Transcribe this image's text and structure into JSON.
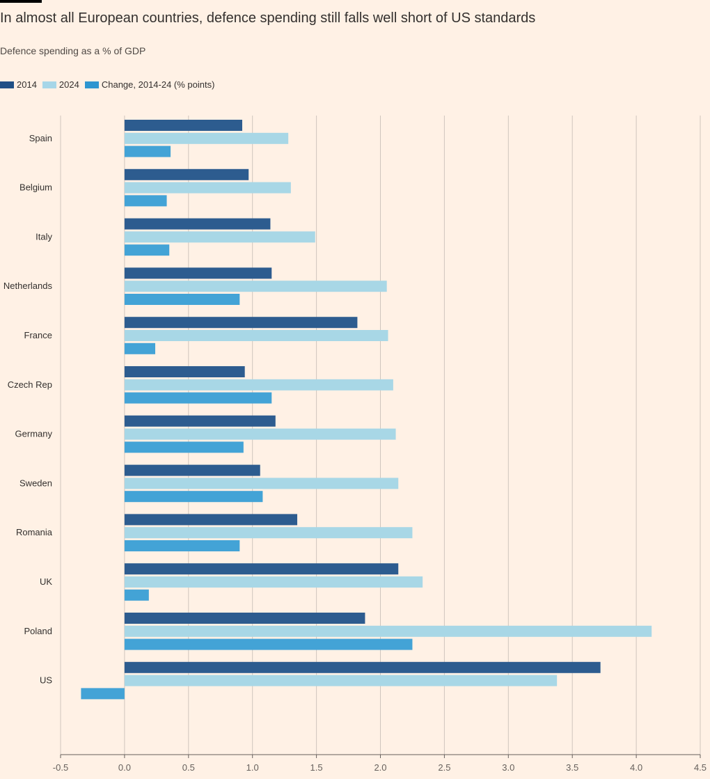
{
  "header": {
    "title": "In almost all European countries, defence spending still falls well short of US standards",
    "subtitle": "Defence spending as a % of GDP"
  },
  "legend": [
    {
      "label": "2014",
      "color": "#1e5086"
    },
    {
      "label": "2024",
      "color": "#a6d6e8"
    },
    {
      "label": "Change, 2014-24 (% points)",
      "color": "#2e96d0"
    }
  ],
  "chart_data": {
    "type": "bar",
    "orientation": "horizontal",
    "categories": [
      "Spain",
      "Belgium",
      "Italy",
      "Netherlands",
      "France",
      "Czech Rep",
      "Germany",
      "Sweden",
      "Romania",
      "UK",
      "Poland",
      "US"
    ],
    "series": [
      {
        "name": "2014",
        "color": "#2d5c8f",
        "values": [
          0.92,
          0.97,
          1.14,
          1.15,
          1.82,
          0.94,
          1.18,
          1.06,
          1.35,
          2.14,
          1.88,
          3.72
        ]
      },
      {
        "name": "2024",
        "color": "#a8d7e6",
        "values": [
          1.28,
          1.3,
          1.49,
          2.05,
          2.06,
          2.1,
          2.12,
          2.14,
          2.25,
          2.33,
          4.12,
          3.38
        ]
      },
      {
        "name": "Change, 2014-24 (% points)",
        "color": "#43a3d6",
        "values": [
          0.36,
          0.33,
          0.35,
          0.9,
          0.24,
          1.15,
          0.93,
          1.08,
          0.9,
          0.19,
          2.25,
          -0.34
        ]
      }
    ],
    "xlim": [
      -0.5,
      4.5
    ],
    "xticks": [
      "-0.5",
      "0.0",
      "0.5",
      "1.0",
      "1.5",
      "2.0",
      "2.5",
      "3.0",
      "3.5",
      "4.0",
      "4.5"
    ],
    "grid": true,
    "legend_position": "top-left"
  }
}
